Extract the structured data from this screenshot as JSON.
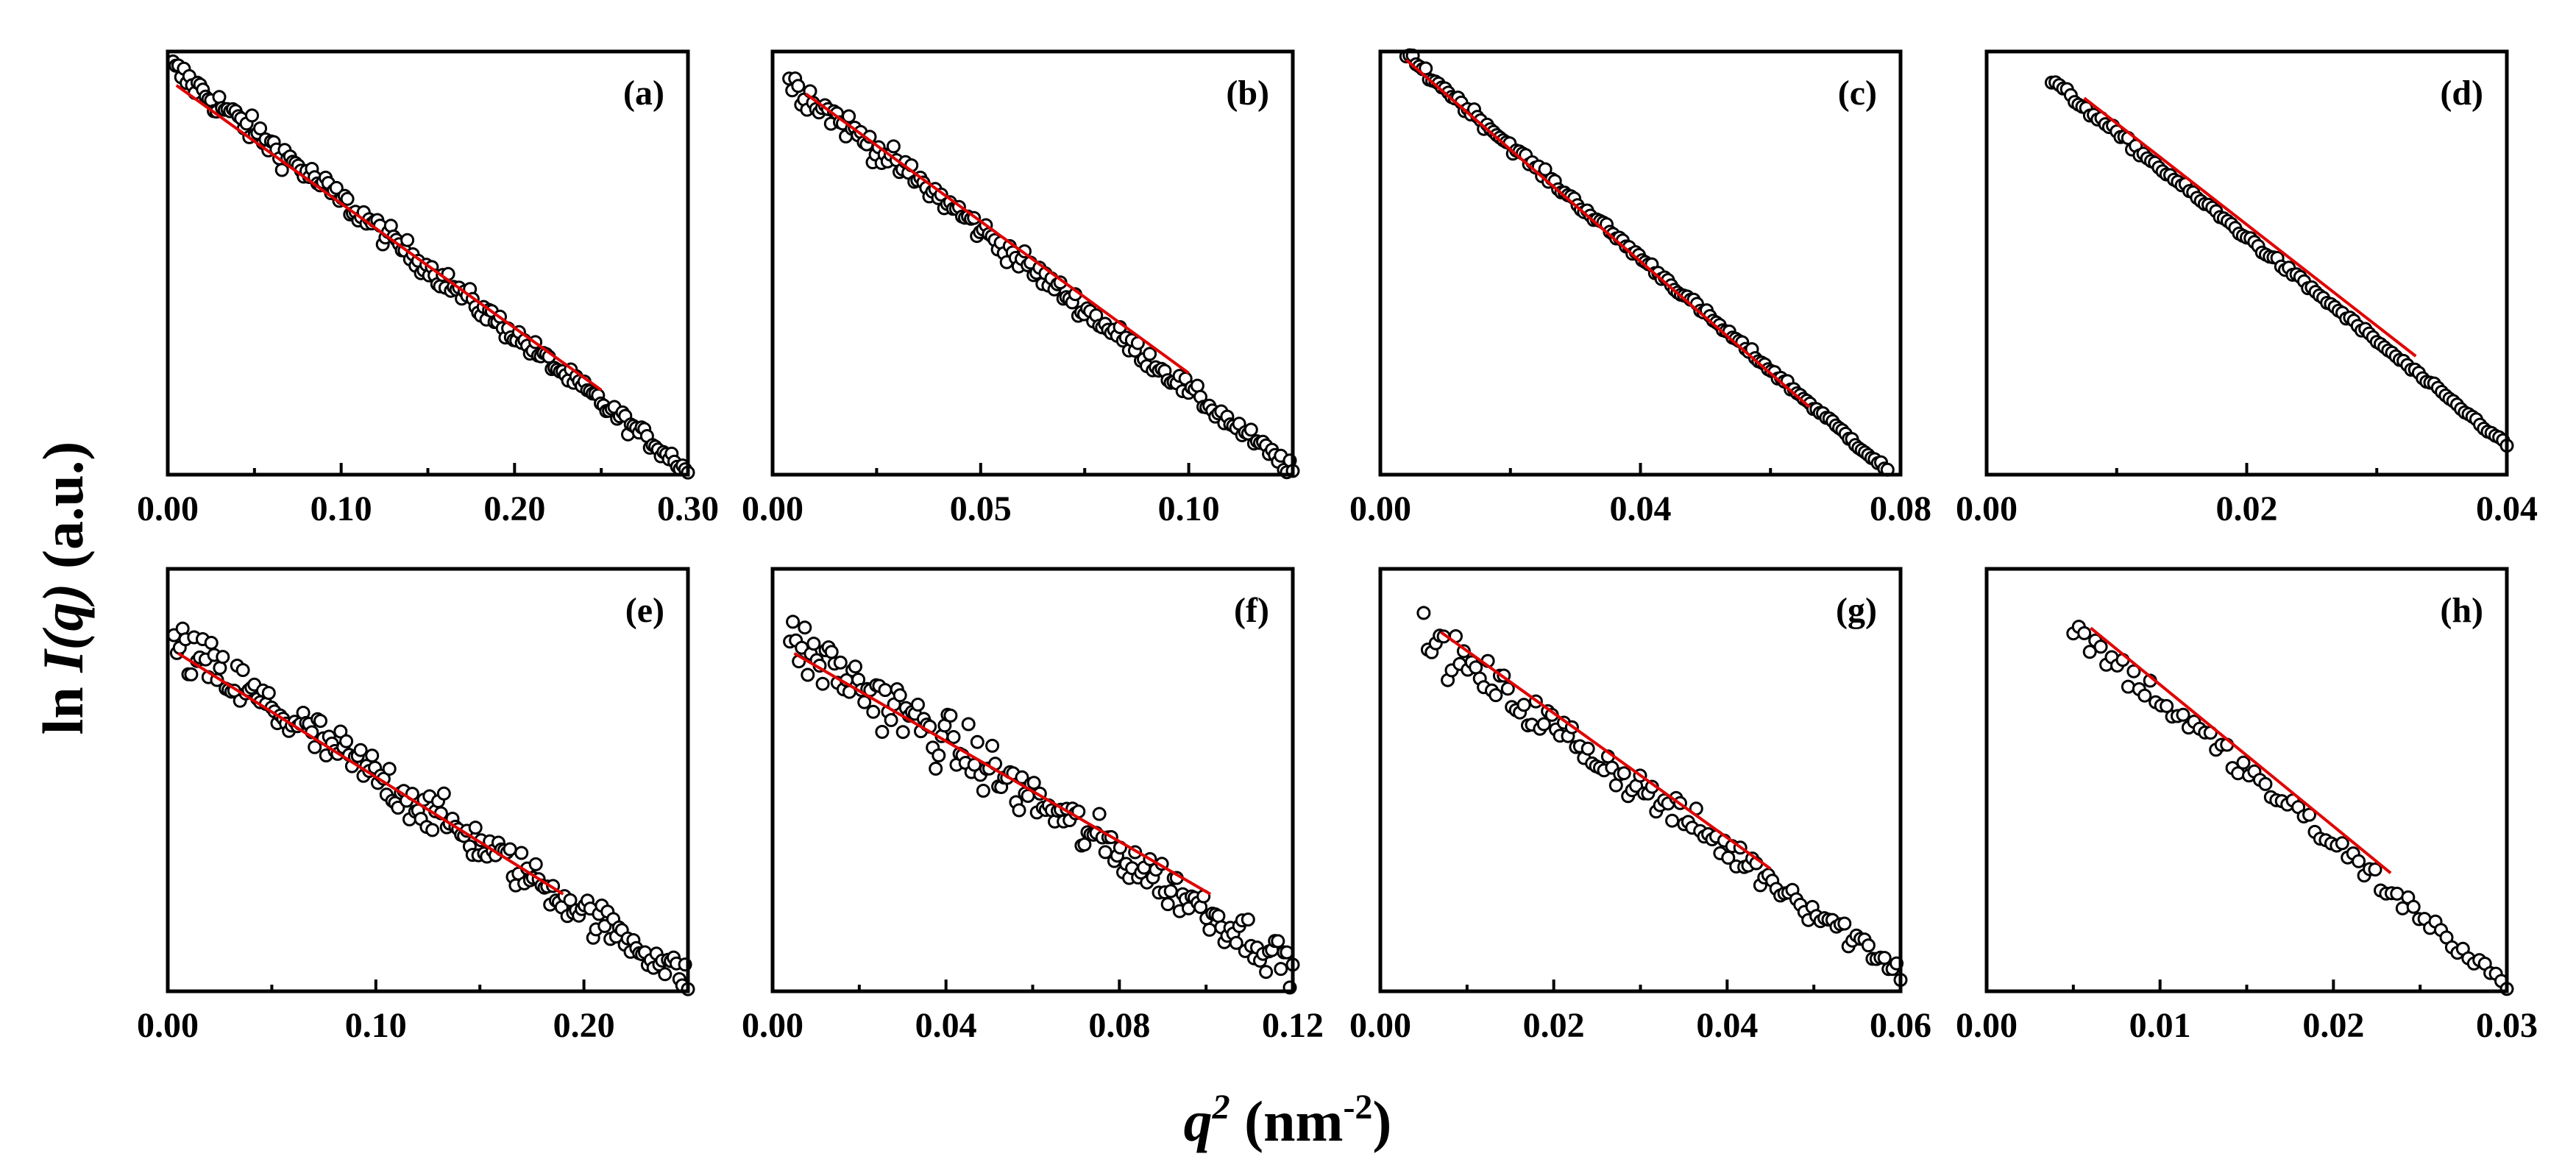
{
  "figure": {
    "ylabel": {
      "prefix": "ln ",
      "italic": "I(q)",
      "suffix": " (a.u.)"
    },
    "xlabel": {
      "italic": "q",
      "sup": "2",
      "units": " (nm",
      "units_sup": "-2",
      "units_close": ")"
    }
  },
  "colors": {
    "points_edge": "#000000",
    "points_fill": "#ffffff",
    "fit_line": "#e00000",
    "frame": "#000000"
  },
  "chart_data": [
    {
      "type": "scatter",
      "label": "(a)",
      "xlim": [
        0,
        0.3
      ],
      "xticks": [
        0,
        0.1,
        0.2,
        0.3
      ],
      "xtick_labels": [
        "0.00",
        "0.10",
        "0.20",
        "0.30"
      ],
      "x_start": 0.003,
      "x_end": 0.3,
      "y_start": 0.96,
      "y_end": 0.01,
      "noise": 0.025,
      "n": 190,
      "fit_x": [
        0.005,
        0.25
      ],
      "fit_y": [
        0.92,
        0.2
      ]
    },
    {
      "type": "scatter",
      "label": "(b)",
      "xlim": [
        0,
        0.125
      ],
      "xticks": [
        0,
        0.05,
        0.1
      ],
      "xtick_labels": [
        "0.00",
        "0.05",
        "0.10"
      ],
      "x_start": 0.004,
      "x_end": 0.125,
      "y_start": 0.93,
      "y_end": 0.01,
      "noise": 0.025,
      "n": 170,
      "fit_x": [
        0.008,
        0.1
      ],
      "fit_y": [
        0.9,
        0.24
      ]
    },
    {
      "type": "scatter",
      "label": "(c)",
      "xlim": [
        0,
        0.08
      ],
      "xticks": [
        0,
        0.04,
        0.08
      ],
      "xtick_labels": [
        "0.00",
        "0.04",
        "0.08"
      ],
      "x_start": 0.004,
      "x_end": 0.078,
      "y_start": 0.99,
      "y_end": 0.01,
      "noise": 0.01,
      "n": 150,
      "fit_x": [
        0.004,
        0.066
      ],
      "fit_y": [
        0.98,
        0.16
      ]
    },
    {
      "type": "scatter",
      "label": "(d)",
      "xlim": [
        0,
        0.04
      ],
      "xticks": [
        0,
        0.02,
        0.04
      ],
      "xtick_labels": [
        "0.00",
        "0.02",
        "0.04"
      ],
      "x_start": 0.005,
      "x_end": 0.04,
      "y_start": 0.93,
      "y_end": 0.07,
      "noise": 0.008,
      "n": 120,
      "fit_x": [
        0.0075,
        0.033
      ],
      "fit_y": [
        0.89,
        0.28
      ]
    },
    {
      "type": "scatter",
      "label": "(e)",
      "xlim": [
        0,
        0.25
      ],
      "xticks": [
        0,
        0.1,
        0.2
      ],
      "xtick_labels": [
        "0.00",
        "0.10",
        "0.20"
      ],
      "x_start": 0.003,
      "x_end": 0.25,
      "y_start": 0.82,
      "y_end": 0.03,
      "noise": 0.05,
      "n": 180,
      "fit_x": [
        0.005,
        0.19
      ],
      "fit_y": [
        0.8,
        0.23
      ]
    },
    {
      "type": "scatter",
      "label": "(f)",
      "xlim": [
        0,
        0.12
      ],
      "xticks": [
        0,
        0.04,
        0.08,
        0.12
      ],
      "xtick_labels": [
        "0.00",
        "0.04",
        "0.08",
        "0.12"
      ],
      "x_start": 0.004,
      "x_end": 0.12,
      "y_start": 0.83,
      "y_end": 0.06,
      "noise": 0.06,
      "n": 170,
      "fit_x": [
        0.005,
        0.101
      ],
      "fit_y": [
        0.8,
        0.23
      ]
    },
    {
      "type": "scatter",
      "label": "(g)",
      "xlim": [
        0,
        0.06
      ],
      "xticks": [
        0,
        0.02,
        0.04,
        0.06
      ],
      "xtick_labels": [
        "0.00",
        "0.02",
        "0.04",
        "0.06"
      ],
      "x_start": 0.005,
      "x_end": 0.06,
      "y_start": 0.84,
      "y_end": 0.05,
      "noise": 0.04,
      "n": 120,
      "fit_x": [
        0.007,
        0.045
      ],
      "fit_y": [
        0.85,
        0.29
      ]
    },
    {
      "type": "scatter",
      "label": "(h)",
      "xlim": [
        0,
        0.03
      ],
      "xticks": [
        0,
        0.01,
        0.02,
        0.03
      ],
      "xtick_labels": [
        "0.00",
        "0.01",
        "0.02",
        "0.03"
      ],
      "x_start": 0.005,
      "x_end": 0.03,
      "y_start": 0.86,
      "y_end": 0.01,
      "noise": 0.03,
      "n": 80,
      "fit_x": [
        0.006,
        0.0233
      ],
      "fit_y": [
        0.86,
        0.28
      ]
    }
  ]
}
